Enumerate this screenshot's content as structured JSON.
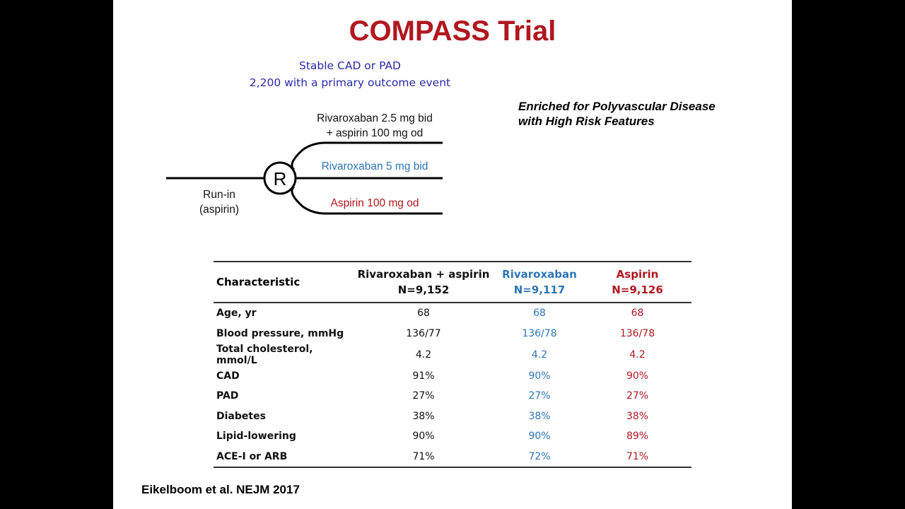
{
  "title": "COMPASS Trial",
  "design": {
    "population_line1": "Stable CAD or PAD",
    "population_line2": "2,200 with a primary outcome event",
    "randomization_symbol": "R",
    "runin_line1": "Run-in",
    "runin_line2": "(aspirin)",
    "arms": [
      {
        "line1": "Rivaroxaban 2.5 mg bid",
        "line2": "+ aspirin 100 mg od",
        "color": "#111111"
      },
      {
        "line1": "Rivaroxaban 5 mg bid",
        "line2": "",
        "color": "#2e75b6"
      },
      {
        "line1": "Aspirin 100 mg od",
        "line2": "",
        "color": "#b0171f"
      }
    ]
  },
  "note_line1": "Enriched for Polyvascular Disease",
  "note_line2": "with High Risk Features",
  "table": {
    "header": {
      "characteristic": "Characteristic",
      "col1_name": "Rivaroxaban + aspirin",
      "col1_n": "N=9,152",
      "col2_name": "Rivaroxaban",
      "col2_n": "N=9,117",
      "col3_name": "Aspirin",
      "col3_n": "N=9,126"
    },
    "rows": [
      {
        "label": "Age, yr",
        "v1": "68",
        "v2": "68",
        "v3": "68"
      },
      {
        "label": "Blood pressure, mmHg",
        "v1": "136/77",
        "v2": "136/78",
        "v3": "136/78"
      },
      {
        "label": "Total cholesterol, mmol/L",
        "v1": "4.2",
        "v2": "4.2",
        "v3": "4.2"
      },
      {
        "label": "CAD",
        "v1": "91%",
        "v2": "90%",
        "v3": "90%"
      },
      {
        "label": "PAD",
        "v1": "27%",
        "v2": "27%",
        "v3": "27%"
      },
      {
        "label": "Diabetes",
        "v1": "38%",
        "v2": "38%",
        "v3": "38%"
      },
      {
        "label": "Lipid-lowering",
        "v1": "90%",
        "v2": "90%",
        "v3": "89%"
      },
      {
        "label": "ACE-I or ARB",
        "v1": "71%",
        "v2": "72%",
        "v3": "71%"
      }
    ]
  },
  "citation": "Eikelboom et al. NEJM 2017",
  "colors": {
    "title": "#b0171f",
    "population": "#2a2aa8",
    "rivaroxaban": "#2e75b6",
    "aspirin": "#b0171f"
  }
}
